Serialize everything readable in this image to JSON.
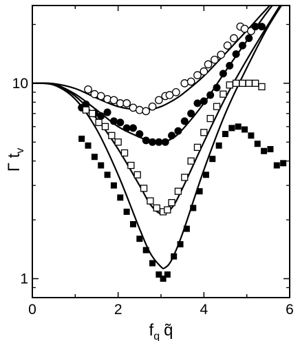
{
  "chart_data": {
    "type": "scatter",
    "title": "",
    "xlabel": "f",
    "xlabel_sub": "q",
    "xlabel_symbol": "q̃",
    "ylabel": "Γ t",
    "ylabel_sub": "v",
    "xlim": [
      0,
      6
    ],
    "ylim": [
      0.8,
      25
    ],
    "yscale": "log",
    "x_ticks": [
      0,
      2,
      4,
      6
    ],
    "x_tick_labels": [
      "0",
      "2",
      "4",
      "6"
    ],
    "y_ticks": [
      1,
      10
    ],
    "y_tick_labels": [
      "1",
      "10"
    ],
    "grid": false,
    "series": [
      {
        "marker": "open-circle",
        "x": [
          1.3,
          1.45,
          1.6,
          1.75,
          1.9,
          2.05,
          2.2,
          2.35,
          2.5,
          2.65,
          2.8,
          2.95,
          3.1,
          3.2,
          3.35,
          3.55,
          3.7,
          3.85,
          4.0,
          4.1,
          4.25,
          4.4,
          4.55,
          4.7,
          4.85,
          4.95,
          5.1
        ],
        "y": [
          9.3,
          8.8,
          8.6,
          8.3,
          8.2,
          7.9,
          7.9,
          7.5,
          7.3,
          7.2,
          7.6,
          8.2,
          8.6,
          8.7,
          9.0,
          10.0,
          10.2,
          11.0,
          11.5,
          12.5,
          13.2,
          14.0,
          15.6,
          17.0,
          19.5,
          19.0,
          18.5
        ]
      },
      {
        "marker": "filled-circle",
        "x": [
          1.15,
          1.25,
          1.45,
          1.6,
          1.75,
          1.9,
          2.05,
          2.2,
          2.35,
          2.5,
          2.65,
          2.8,
          2.95,
          3.1,
          3.25,
          3.4,
          3.55,
          3.7,
          3.85,
          4.0,
          4.15,
          4.3,
          4.45,
          4.6,
          4.75,
          4.9,
          5.05,
          5.2,
          5.35
        ],
        "y": [
          7.5,
          7.8,
          7.0,
          6.8,
          7.1,
          6.4,
          6.3,
          5.9,
          5.9,
          5.5,
          5.1,
          5.0,
          5.0,
          5.0,
          5.4,
          5.7,
          6.4,
          7.0,
          7.9,
          8.1,
          8.7,
          9.5,
          11.2,
          12.3,
          14.1,
          15.6,
          17.0,
          19.5,
          19.5
        ]
      },
      {
        "marker": "open-square",
        "x": [
          1.25,
          1.4,
          1.55,
          1.7,
          1.85,
          2.0,
          2.15,
          2.3,
          2.45,
          2.6,
          2.75,
          2.9,
          3.05,
          3.15,
          3.25,
          3.4,
          3.55,
          3.7,
          3.85,
          4.0,
          4.15,
          4.3,
          4.45,
          4.6,
          4.75,
          4.9,
          5.05,
          5.2,
          5.35
        ],
        "y": [
          7.3,
          7.0,
          6.3,
          6.0,
          5.4,
          5.0,
          4.4,
          3.8,
          3.4,
          2.9,
          2.5,
          2.3,
          2.2,
          2.25,
          2.45,
          2.8,
          3.3,
          4.0,
          4.7,
          5.6,
          6.6,
          7.6,
          8.8,
          9.8,
          10.0,
          10.0,
          10.0,
          10.0,
          9.6
        ]
      },
      {
        "marker": "filled-square",
        "x": [
          1.15,
          1.3,
          1.45,
          1.6,
          1.75,
          1.9,
          2.05,
          2.2,
          2.35,
          2.5,
          2.65,
          2.8,
          2.95,
          3.05,
          3.15,
          3.3,
          3.45,
          3.6,
          3.75,
          3.9,
          4.05,
          4.2,
          4.35,
          4.5,
          4.65,
          4.8,
          4.95,
          5.1,
          5.25,
          5.4,
          5.55,
          5.7,
          5.85
        ],
        "y": [
          5.2,
          4.8,
          4.2,
          3.8,
          3.4,
          3.0,
          2.6,
          2.2,
          1.9,
          1.6,
          1.4,
          1.2,
          1.05,
          1.0,
          1.05,
          1.3,
          1.5,
          1.8,
          2.3,
          2.8,
          3.4,
          4.1,
          4.8,
          5.5,
          5.9,
          6.0,
          5.8,
          5.4,
          4.9,
          4.5,
          4.6,
          3.8,
          3.9
        ]
      }
    ],
    "fit_curves": [
      {
        "x": [
          0,
          0.5,
          1.0,
          1.5,
          2.0,
          2.5,
          2.75,
          3.0,
          3.25,
          3.5,
          4.0,
          4.5,
          5.0,
          5.5,
          6.0
        ],
        "y": [
          10,
          9.95,
          9.4,
          8.4,
          7.6,
          7.3,
          7.35,
          7.6,
          8.1,
          8.8,
          10.9,
          14.2,
          18.6,
          24.5,
          32
        ]
      },
      {
        "x": [
          0,
          0.5,
          1.0,
          1.5,
          2.0,
          2.5,
          2.75,
          3.0,
          3.25,
          3.5,
          4.0,
          4.5,
          5.0,
          5.5,
          6.0
        ],
        "y": [
          10,
          9.9,
          8.8,
          7.3,
          6.0,
          5.3,
          5.05,
          5.0,
          5.2,
          5.8,
          7.9,
          11.5,
          16.5,
          23.5,
          32
        ]
      },
      {
        "x": [
          0,
          0.5,
          1.0,
          1.5,
          2.0,
          2.5,
          2.75,
          3.0,
          3.25,
          3.5,
          4.0,
          4.5,
          5.0,
          5.5,
          6.0
        ],
        "y": [
          10,
          9.85,
          8.6,
          6.6,
          4.6,
          3.0,
          2.4,
          2.15,
          2.3,
          2.9,
          5.0,
          8.4,
          13.2,
          20.0,
          30
        ]
      },
      {
        "x": [
          0,
          0.5,
          1.0,
          1.5,
          2.0,
          2.5,
          2.75,
          3.0,
          3.1,
          3.25,
          3.5,
          4.0,
          4.5,
          5.0,
          5.5,
          6.0
        ],
        "y": [
          10,
          9.8,
          8.3,
          5.8,
          3.4,
          1.8,
          1.35,
          1.15,
          1.14,
          1.25,
          1.7,
          3.6,
          7.0,
          12.0,
          19.5,
          29
        ]
      }
    ]
  }
}
